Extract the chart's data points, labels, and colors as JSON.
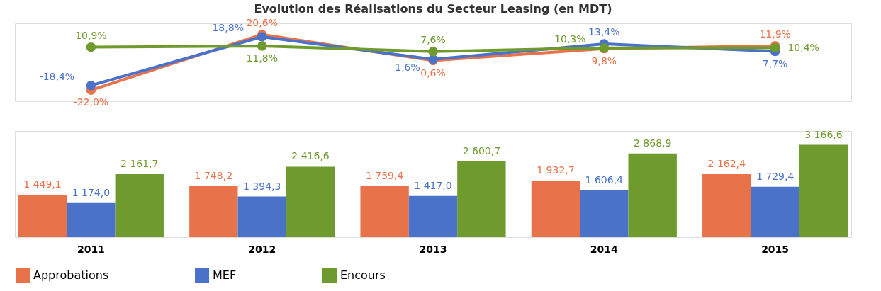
{
  "chart_data": [
    {
      "type": "line",
      "title": "Evolution des Réalisations du Secteur Leasing (en MDT)",
      "categories": [
        "2011",
        "2012",
        "2013",
        "2014",
        "2015"
      ],
      "tick_labels": false,
      "marker": "circle",
      "series": [
        {
          "color": "#e8734a",
          "values": [
            -22.0,
            20.6,
            0.6,
            9.8,
            11.9
          ],
          "value_labels": [
            "-22,0%",
            "20,6%",
            "0,6%",
            "9,8%",
            "11,9%"
          ]
        },
        {
          "color": "#4a72c8",
          "values": [
            -18.4,
            18.8,
            1.6,
            13.4,
            7.7
          ],
          "value_labels": [
            "-18,4%",
            "18,8%",
            "1,6%",
            "13,4%",
            "7,7%"
          ]
        },
        {
          "color": "#6e9a2e",
          "values": [
            10.9,
            11.8,
            7.6,
            10.3,
            10.4
          ],
          "value_labels": [
            "10,9%",
            "11,8%",
            "7,6%",
            "10,3%",
            "10,4%"
          ]
        }
      ]
    },
    {
      "type": "bar",
      "categories": [
        "2011",
        "2012",
        "2013",
        "2014",
        "2015"
      ],
      "legend": "bottom",
      "series": [
        {
          "name": "Approbations",
          "color": "#e8734a",
          "values": [
            1449.1,
            1748.2,
            1759.4,
            1932.7,
            2162.4
          ],
          "value_labels": [
            "1 449,1",
            "1 748,2",
            "1 759,4",
            "1 932,7",
            "2 162,4"
          ]
        },
        {
          "name": "MEF",
          "color": "#4a72c8",
          "values": [
            1174.0,
            1394.3,
            1417.0,
            1606.4,
            1729.4
          ],
          "value_labels": [
            "1 174,0",
            "1 394,3",
            "1 417,0",
            "1 606,4",
            "1 729,4"
          ]
        },
        {
          "name": "Encours",
          "color": "#6e9a2e",
          "values": [
            2161.7,
            2416.6,
            2600.7,
            2868.9,
            3166.6
          ],
          "value_labels": [
            "2 161,7",
            "2 416,6",
            "2 600,7",
            "2 868,9",
            "3 166,6"
          ]
        }
      ]
    }
  ]
}
